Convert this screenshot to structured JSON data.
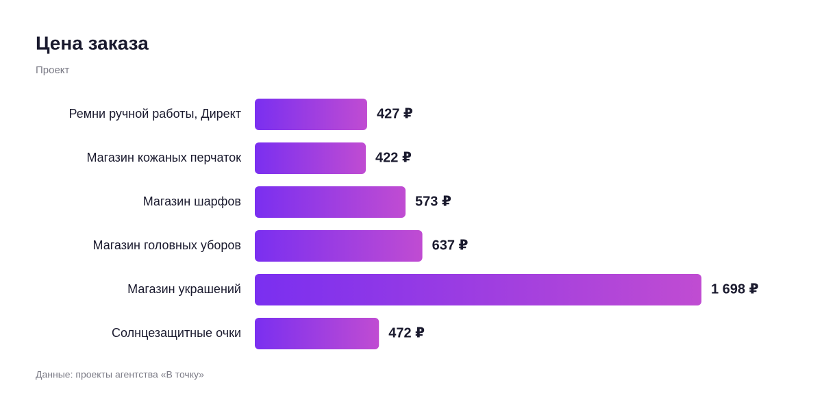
{
  "chart_data": {
    "type": "bar",
    "orientation": "horizontal",
    "title": "Цена заказа",
    "subtitle": "Проект",
    "categories": [
      "Ремни ручной работы, Директ",
      "Магазин кожаных перчаток",
      "Магазин шарфов",
      "Магазин головных уборов",
      "Магазин украшений",
      "Солнцезащитные очки"
    ],
    "values": [
      427,
      422,
      573,
      637,
      1698,
      472
    ],
    "value_labels": [
      "427 ₽",
      "422 ₽",
      "573 ₽",
      "637 ₽",
      "1 698 ₽",
      "472 ₽"
    ],
    "color": [
      "#7a2ff0",
      "#c04cd2"
    ],
    "note": "Данные: проекты агентства «В точку»"
  }
}
